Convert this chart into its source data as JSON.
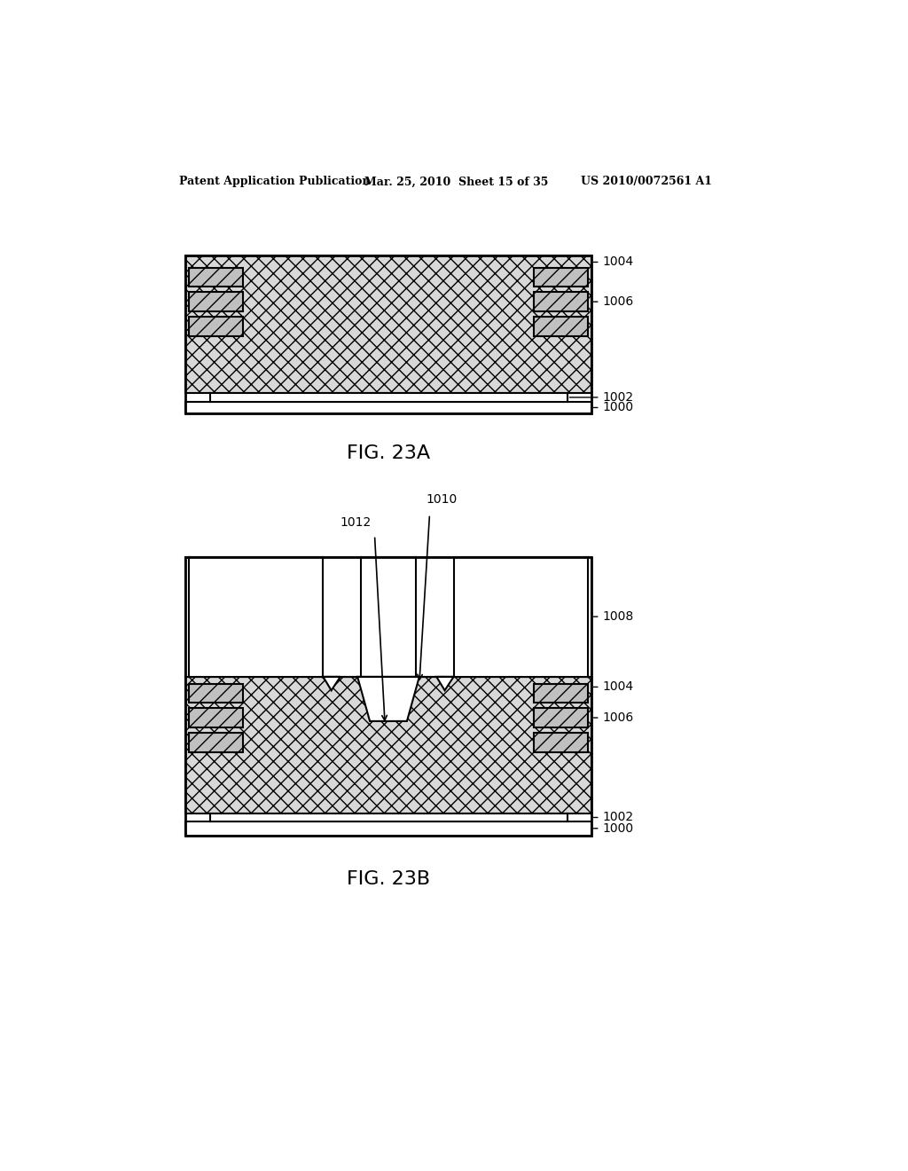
{
  "bg_color": "#ffffff",
  "header_left": "Patent Application Publication",
  "header_mid": "Mar. 25, 2010  Sheet 15 of 35",
  "header_right": "US 2010/0072561 A1",
  "fig_label_A": "FIG. 23A",
  "fig_label_B": "FIG. 23B",
  "hatch_fill": "#d8d8d8",
  "metal_fill": "#c0c0c0",
  "outline_color": "#000000",
  "lw": 1.5
}
